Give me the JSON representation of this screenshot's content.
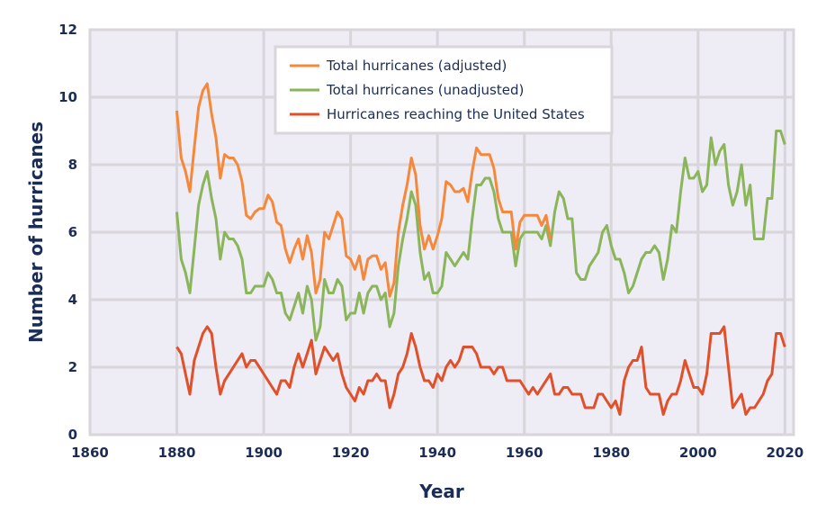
{
  "chart_data": {
    "type": "line",
    "title": "",
    "xlabel": "Year",
    "ylabel": "Number of hurricanes",
    "xlim": [
      1860,
      2022
    ],
    "ylim": [
      0,
      12
    ],
    "xticks": [
      1860,
      1880,
      1900,
      1920,
      1940,
      1960,
      1980,
      2000,
      2020
    ],
    "yticks": [
      0,
      2,
      4,
      6,
      8,
      10,
      12
    ],
    "grid": true,
    "legend_position": "top-center",
    "x_start": 1880,
    "series": [
      {
        "name": "Total hurricanes (adjusted)",
        "color": "#f5883a",
        "values": [
          9.6,
          8.2,
          7.8,
          7.2,
          8.5,
          9.7,
          10.2,
          10.4,
          9.5,
          8.8,
          7.6,
          8.3,
          8.2,
          8.2,
          8.0,
          7.5,
          6.5,
          6.4,
          6.6,
          6.7,
          6.7,
          7.1,
          6.9,
          6.3,
          6.2,
          5.5,
          5.1,
          5.5,
          5.8,
          5.2,
          5.9,
          5.4,
          4.2,
          4.6,
          6.0,
          5.8,
          6.2,
          6.6,
          6.4,
          5.3,
          5.2,
          4.9,
          5.3,
          4.6,
          5.2,
          5.3,
          5.3,
          4.9,
          5.1,
          4.1,
          4.5,
          6.0,
          6.8,
          7.4,
          8.2,
          7.7,
          6.2,
          5.5,
          5.9,
          5.5,
          5.9,
          6.4,
          7.5,
          7.4,
          7.2,
          7.2,
          7.3,
          6.9,
          7.8,
          8.5,
          8.3,
          8.3,
          8.3,
          7.9,
          7.0,
          6.6,
          6.6,
          6.6,
          5.5,
          6.3,
          6.5,
          6.5,
          6.5,
          6.5,
          6.2,
          6.5,
          5.8
        ]
      },
      {
        "name": "Total hurricanes (unadjusted)",
        "color": "#8ab55a",
        "values": [
          6.6,
          5.2,
          4.8,
          4.2,
          5.5,
          6.8,
          7.4,
          7.8,
          7.0,
          6.4,
          5.2,
          6.0,
          5.8,
          5.8,
          5.6,
          5.2,
          4.2,
          4.2,
          4.4,
          4.4,
          4.4,
          4.8,
          4.6,
          4.2,
          4.2,
          3.6,
          3.4,
          3.8,
          4.2,
          3.6,
          4.4,
          4.0,
          2.8,
          3.2,
          4.6,
          4.2,
          4.2,
          4.6,
          4.4,
          3.4,
          3.6,
          3.6,
          4.2,
          3.6,
          4.2,
          4.4,
          4.4,
          4.0,
          4.2,
          3.2,
          3.6,
          5.0,
          5.8,
          6.4,
          7.2,
          6.8,
          5.4,
          4.6,
          4.8,
          4.2,
          4.2,
          4.4,
          5.4,
          5.2,
          5.0,
          5.2,
          5.4,
          5.2,
          6.4,
          7.4,
          7.4,
          7.6,
          7.6,
          7.2,
          6.4,
          6.0,
          6.0,
          6.0,
          5.0,
          5.8,
          6.0,
          6.0,
          6.0,
          6.0,
          5.8,
          6.2,
          5.6,
          6.6,
          7.2,
          7.0,
          6.4,
          6.4,
          4.8,
          4.6,
          4.6,
          5.0,
          5.2,
          5.4,
          6.0,
          6.2,
          5.6,
          5.2,
          5.2,
          4.8,
          4.2,
          4.4,
          4.8,
          5.2,
          5.4,
          5.4,
          5.6,
          5.4,
          4.6,
          5.2,
          6.2,
          6.0,
          7.2,
          8.2,
          7.6,
          7.6,
          7.8,
          7.2,
          7.4,
          8.8,
          8.0,
          8.4,
          8.6,
          7.4,
          6.8,
          7.2,
          8.0,
          6.8,
          7.4,
          5.8,
          5.8,
          5.8,
          7.0,
          7.0,
          9.0,
          9.0,
          8.6
        ]
      },
      {
        "name": "Hurricanes reaching the United States",
        "color": "#e0512b",
        "values": [
          2.6,
          2.4,
          1.8,
          1.2,
          2.2,
          2.6,
          3.0,
          3.2,
          3.0,
          2.0,
          1.2,
          1.6,
          1.8,
          2.0,
          2.2,
          2.4,
          2.0,
          2.2,
          2.2,
          2.0,
          1.8,
          1.6,
          1.4,
          1.2,
          1.6,
          1.6,
          1.4,
          2.0,
          2.4,
          2.0,
          2.4,
          2.8,
          1.8,
          2.2,
          2.6,
          2.4,
          2.2,
          2.4,
          1.8,
          1.4,
          1.2,
          1.0,
          1.4,
          1.2,
          1.6,
          1.6,
          1.8,
          1.6,
          1.6,
          0.8,
          1.2,
          1.8,
          2.0,
          2.4,
          3.0,
          2.6,
          2.0,
          1.6,
          1.6,
          1.4,
          1.8,
          1.6,
          2.0,
          2.2,
          2.0,
          2.2,
          2.6,
          2.6,
          2.6,
          2.4,
          2.0,
          2.0,
          2.0,
          1.8,
          2.0,
          2.0,
          1.6,
          1.6,
          1.6,
          1.6,
          1.4,
          1.2,
          1.4,
          1.2,
          1.4,
          1.6,
          1.8,
          1.2,
          1.2,
          1.4,
          1.4,
          1.2,
          1.2,
          1.2,
          0.8,
          0.8,
          0.8,
          1.2,
          1.2,
          1.0,
          0.8,
          1.0,
          0.6,
          1.6,
          2.0,
          2.2,
          2.2,
          2.6,
          1.4,
          1.2,
          1.2,
          1.2,
          0.6,
          1.0,
          1.2,
          1.2,
          1.6,
          2.2,
          1.8,
          1.4,
          1.4,
          1.2,
          1.8,
          3.0,
          3.0,
          3.0,
          3.2,
          2.0,
          0.8,
          1.0,
          1.2,
          0.6,
          0.8,
          0.8,
          1.0,
          1.2,
          1.6,
          1.8,
          3.0,
          3.0,
          2.6
        ]
      }
    ]
  }
}
